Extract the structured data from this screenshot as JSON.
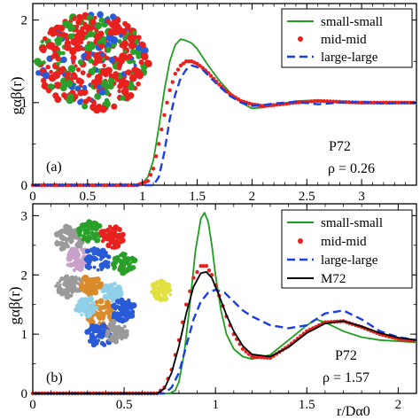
{
  "colors": {
    "small": "#1e9e1e",
    "mid": "#e8201e",
    "large": "#1a3ee0",
    "m72": "#000000",
    "inset_palette": [
      "#e8201e",
      "#2aa02a",
      "#2a5bd7",
      "#d98a2a",
      "#8fd0e8",
      "#c8a0c8",
      "#9a9a9a",
      "#e0e040",
      "#6a3e9a"
    ]
  },
  "chart_data": [
    {
      "type": "line",
      "panel_label": "(a)",
      "ylabel": "gαβ(r)",
      "xlabel": "",
      "xlim": [
        0,
        3.5
      ],
      "ylim": [
        0,
        2.2
      ],
      "xticks": [
        0,
        0.5,
        1,
        1.5,
        2,
        2.5,
        3
      ],
      "yticks": [
        0,
        1,
        2
      ],
      "grid": false,
      "legend_position": "top-right",
      "annotations": [
        {
          "text": "P72"
        },
        {
          "text": "ρ = 0.26"
        }
      ],
      "inset_image": "protein-cluster-dense",
      "series": [
        {
          "name": "small-small",
          "style": "solid-line",
          "color_key": "small",
          "x": [
            0,
            0.9,
            1.0,
            1.05,
            1.1,
            1.15,
            1.2,
            1.25,
            1.3,
            1.35,
            1.4,
            1.45,
            1.5,
            1.6,
            1.7,
            1.8,
            1.9,
            2.0,
            2.1,
            2.2,
            2.4,
            2.6,
            2.8,
            3.0,
            3.2,
            3.5
          ],
          "y": [
            0,
            0,
            0.02,
            0.1,
            0.3,
            0.7,
            1.15,
            1.5,
            1.7,
            1.77,
            1.75,
            1.72,
            1.65,
            1.45,
            1.27,
            1.12,
            1.0,
            0.93,
            0.94,
            0.97,
            1.02,
            1.03,
            1.0,
            0.99,
            1.0,
            0.99
          ]
        },
        {
          "name": "mid-mid",
          "style": "dotted-markers",
          "color_key": "mid",
          "x": [
            0,
            0.95,
            1.05,
            1.1,
            1.15,
            1.2,
            1.25,
            1.3,
            1.35,
            1.4,
            1.45,
            1.5,
            1.55,
            1.6,
            1.7,
            1.8,
            1.9,
            2.0,
            2.1,
            2.2,
            2.4,
            2.6,
            2.8,
            3.0,
            3.2,
            3.5
          ],
          "y": [
            0,
            0,
            0.05,
            0.2,
            0.5,
            0.85,
            1.15,
            1.35,
            1.45,
            1.5,
            1.5,
            1.47,
            1.42,
            1.36,
            1.22,
            1.1,
            1.02,
            0.98,
            0.96,
            0.97,
            1.0,
            1.02,
            1.01,
            1.0,
            1.0,
            1.0
          ]
        },
        {
          "name": "large-large",
          "style": "dashed-line",
          "color_key": "large",
          "x": [
            0,
            1.1,
            1.15,
            1.2,
            1.25,
            1.3,
            1.35,
            1.4,
            1.45,
            1.5,
            1.55,
            1.6,
            1.7,
            1.8,
            1.9,
            2.0,
            2.1,
            2.2,
            2.4,
            2.6,
            2.8,
            3.0,
            3.2,
            3.5
          ],
          "y": [
            0,
            0,
            0.1,
            0.4,
            0.8,
            1.1,
            1.3,
            1.4,
            1.45,
            1.43,
            1.4,
            1.33,
            1.2,
            1.08,
            1.0,
            0.96,
            0.97,
            0.99,
            1.01,
            0.98,
            1.0,
            1.01,
            0.99,
            1.0
          ]
        }
      ]
    },
    {
      "type": "line",
      "panel_label": "(b)",
      "ylabel": "gαβ(r)",
      "xlabel": "r/Dα0",
      "xlim": [
        0,
        2.1
      ],
      "ylim": [
        0,
        3.2
      ],
      "xticks": [
        0,
        0.5,
        1,
        1.5,
        2
      ],
      "yticks": [
        0,
        1,
        2,
        3
      ],
      "grid": false,
      "legend_position": "top-right",
      "annotations": [
        {
          "text": "P72"
        },
        {
          "text": "ρ = 1.57"
        }
      ],
      "inset_image": "protein-cluster-sparse",
      "series": [
        {
          "name": "small-small",
          "style": "solid-line",
          "color_key": "small",
          "x": [
            0,
            0.75,
            0.78,
            0.8,
            0.83,
            0.86,
            0.89,
            0.92,
            0.94,
            0.96,
            0.98,
            1.0,
            1.03,
            1.06,
            1.1,
            1.15,
            1.2,
            1.3,
            1.4,
            1.5,
            1.55,
            1.6,
            1.7,
            1.8,
            1.9,
            2.0,
            2.1
          ],
          "y": [
            0,
            0,
            0.05,
            0.2,
            0.7,
            1.5,
            2.4,
            2.95,
            3.05,
            2.9,
            2.5,
            2.0,
            1.4,
            1.0,
            0.75,
            0.62,
            0.58,
            0.65,
            0.9,
            1.15,
            1.25,
            1.2,
            1.05,
            0.95,
            0.9,
            0.88,
            0.86
          ]
        },
        {
          "name": "mid-mid",
          "style": "dotted-markers",
          "color_key": "mid",
          "x": [
            0,
            0.68,
            0.72,
            0.76,
            0.8,
            0.84,
            0.88,
            0.92,
            0.95,
            0.98,
            1.02,
            1.06,
            1.1,
            1.15,
            1.2,
            1.3,
            1.4,
            1.5,
            1.6,
            1.7,
            1.8,
            1.9,
            2.0,
            2.1
          ],
          "y": [
            0,
            0,
            0.1,
            0.4,
            0.9,
            1.5,
            1.95,
            2.15,
            2.15,
            2.0,
            1.65,
            1.3,
            1.0,
            0.75,
            0.62,
            0.6,
            0.8,
            1.05,
            1.2,
            1.22,
            1.12,
            1.0,
            0.92,
            0.88
          ]
        },
        {
          "name": "large-large",
          "style": "dashed-line",
          "color_key": "large",
          "x": [
            0,
            0.72,
            0.76,
            0.8,
            0.84,
            0.88,
            0.92,
            0.96,
            1.0,
            1.05,
            1.1,
            1.15,
            1.2,
            1.3,
            1.4,
            1.5,
            1.6,
            1.7,
            1.8,
            1.9,
            2.0,
            2.1
          ],
          "y": [
            0,
            0,
            0.1,
            0.35,
            0.8,
            1.25,
            1.55,
            1.7,
            1.75,
            1.7,
            1.55,
            1.4,
            1.3,
            1.15,
            1.1,
            1.15,
            1.35,
            1.4,
            1.25,
            1.05,
            0.95,
            0.9
          ]
        },
        {
          "name": "M72",
          "style": "solid-line",
          "color_key": "m72",
          "x": [
            0,
            0.68,
            0.72,
            0.76,
            0.8,
            0.84,
            0.88,
            0.92,
            0.95,
            0.98,
            1.02,
            1.06,
            1.1,
            1.15,
            1.2,
            1.3,
            1.4,
            1.5,
            1.6,
            1.7,
            1.8,
            1.9,
            2.0,
            2.1
          ],
          "y": [
            0,
            0,
            0.08,
            0.35,
            0.8,
            1.35,
            1.8,
            2.03,
            2.05,
            1.95,
            1.65,
            1.32,
            1.05,
            0.8,
            0.66,
            0.62,
            0.78,
            1.02,
            1.18,
            1.22,
            1.13,
            1.02,
            0.94,
            0.9
          ]
        }
      ]
    }
  ]
}
